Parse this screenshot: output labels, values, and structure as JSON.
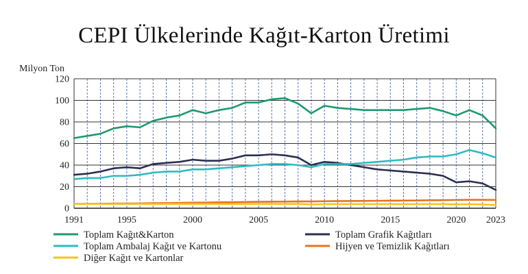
{
  "chart_data": {
    "type": "line",
    "title": "CEPI Ülkelerinde Kağıt-Karton Üretimi",
    "ylabel": "Milyon Ton",
    "xlabel": "",
    "ylim": [
      0,
      120
    ],
    "xlim": [
      1991,
      2023
    ],
    "yticks": [
      "0",
      "20",
      "40",
      "60",
      "80",
      "100",
      "120"
    ],
    "xticks": [
      "1991",
      "1995",
      "2000",
      "2005",
      "2010",
      "2015",
      "2020",
      "2023"
    ],
    "grid": "vertical-dashed-yearly, horizontal-solid",
    "legend_position": "bottom",
    "x": [
      1991,
      1992,
      1993,
      1994,
      1995,
      1996,
      1997,
      1998,
      1999,
      2000,
      2001,
      2002,
      2003,
      2004,
      2005,
      2006,
      2007,
      2008,
      2009,
      2010,
      2011,
      2012,
      2013,
      2014,
      2015,
      2016,
      2017,
      2018,
      2019,
      2020,
      2021,
      2022,
      2023
    ],
    "series": [
      {
        "name": "Toplam Kağıt&Karton",
        "color": "#1a9a6b",
        "values": [
          65,
          67,
          69,
          74,
          76,
          75,
          81,
          84,
          86,
          91,
          88,
          91,
          93,
          98,
          98,
          101,
          102,
          97,
          88,
          95,
          93,
          92,
          91,
          91,
          91,
          91,
          92,
          93,
          90,
          86,
          91,
          86,
          74
        ]
      },
      {
        "name": "Toplam Grafik Kağıtları",
        "color": "#2a2e4f",
        "values": [
          31,
          32,
          34,
          37,
          38,
          37,
          41,
          42,
          43,
          45,
          44,
          44,
          46,
          49,
          49,
          50,
          49,
          47,
          40,
          43,
          42,
          40,
          38,
          36,
          35,
          34,
          33,
          32,
          30,
          24,
          25,
          23,
          17
        ]
      },
      {
        "name": "Toplam Ambalaj Kağıt ve Kartonu",
        "color": "#2bbcc4",
        "values": [
          27,
          28,
          28,
          30,
          30,
          31,
          33,
          34,
          34,
          36,
          36,
          37,
          38,
          39,
          40,
          41,
          41,
          40,
          38,
          41,
          41,
          41,
          42,
          43,
          44,
          45,
          47,
          48,
          48,
          50,
          54,
          51,
          47
        ]
      },
      {
        "name": "Hijyen ve Temizlik Kağıtları",
        "color": "#e8731c",
        "values": [
          4.0,
          4.1,
          4.2,
          4.3,
          4.4,
          4.5,
          4.7,
          4.8,
          5.0,
          5.2,
          5.3,
          5.5,
          5.6,
          5.8,
          6.0,
          6.1,
          6.2,
          6.3,
          6.3,
          6.5,
          6.6,
          6.7,
          6.8,
          6.9,
          7.0,
          7.1,
          7.2,
          7.4,
          7.5,
          7.7,
          7.8,
          7.8,
          7.7
        ]
      },
      {
        "name": "Diğer Kağıt ve Kartonlar",
        "color": "#f5c21b",
        "values": [
          4,
          4,
          4,
          4,
          4,
          4,
          4,
          4,
          4,
          4,
          4,
          4,
          4,
          4,
          4,
          4,
          4,
          4,
          3.5,
          3.8,
          3.8,
          3.8,
          3.8,
          3.8,
          3.8,
          3.8,
          3.8,
          3.8,
          3.8,
          3.6,
          3.8,
          3.5,
          3
        ]
      }
    ]
  }
}
